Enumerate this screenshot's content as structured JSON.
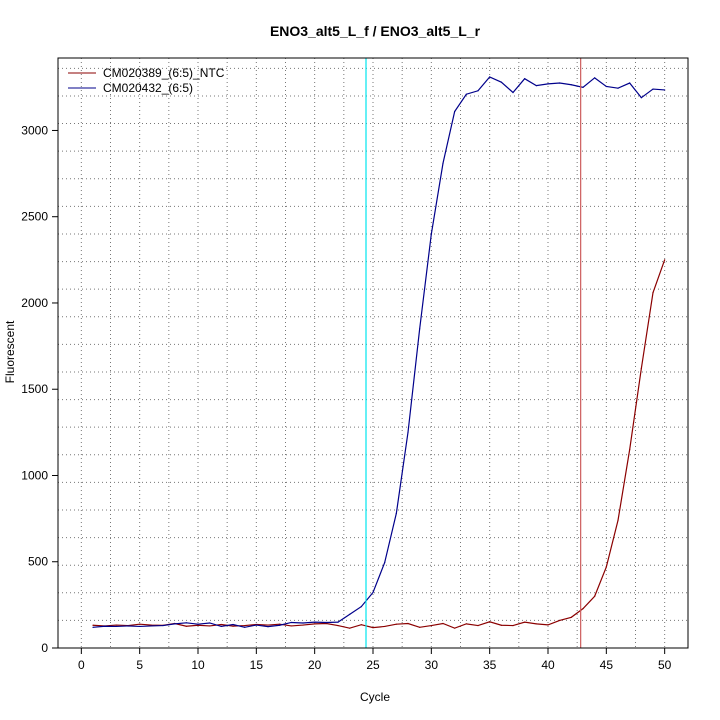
{
  "chart_data": {
    "type": "line",
    "title": "ENO3_alt5_L_f / ENO3_alt5_L_r",
    "xlabel": "Cycle",
    "ylabel": "Fluorescent",
    "xlim": [
      -2,
      52
    ],
    "ylim": [
      0,
      3420
    ],
    "x_ticks": [
      0,
      5,
      10,
      15,
      20,
      25,
      30,
      35,
      40,
      45,
      50
    ],
    "y_ticks": [
      0,
      500,
      1000,
      1500,
      2000,
      2500,
      3000
    ],
    "grid": true,
    "legend_position": "top-left",
    "x": [
      1,
      2,
      3,
      4,
      5,
      6,
      7,
      8,
      9,
      10,
      11,
      12,
      13,
      14,
      15,
      16,
      17,
      18,
      19,
      20,
      21,
      22,
      23,
      24,
      25,
      26,
      27,
      28,
      29,
      30,
      31,
      32,
      33,
      34,
      35,
      36,
      37,
      38,
      39,
      40,
      41,
      42,
      43,
      44,
      45,
      46,
      47,
      48,
      49,
      50
    ],
    "series": [
      {
        "name": "CM020389_(6:5)_NTC",
        "color": "#8b0000",
        "values": [
          132,
          128,
          133,
          130,
          138,
          133,
          131,
          142,
          126,
          132,
          128,
          136,
          127,
          130,
          136,
          133,
          138,
          128,
          133,
          140,
          142,
          130,
          115,
          135,
          118,
          125,
          138,
          142,
          120,
          130,
          142,
          115,
          140,
          130,
          152,
          132,
          130,
          150,
          140,
          134,
          160,
          178,
          228,
          300,
          470,
          740,
          1150,
          1620,
          2060,
          2250
        ]
      },
      {
        "name": "CM020432_(6:5)",
        "color": "#00008b",
        "values": [
          120,
          126,
          125,
          128,
          125,
          128,
          130,
          140,
          146,
          138,
          145,
          125,
          136,
          120,
          133,
          124,
          132,
          148,
          145,
          150,
          148,
          150,
          195,
          240,
          322,
          495,
          780,
          1250,
          1850,
          2400,
          2810,
          3110,
          3210,
          3230,
          3310,
          3280,
          3220,
          3300,
          3260,
          3270,
          3275,
          3265,
          3250,
          3305,
          3255,
          3245,
          3275,
          3190,
          3240,
          3235
        ]
      }
    ],
    "threshold_lines": [
      {
        "x": 24.4,
        "color": "#00e5ee"
      },
      {
        "x": 42.8,
        "color": "#cd5c5c"
      }
    ],
    "baseline_color": "#8b0000"
  }
}
